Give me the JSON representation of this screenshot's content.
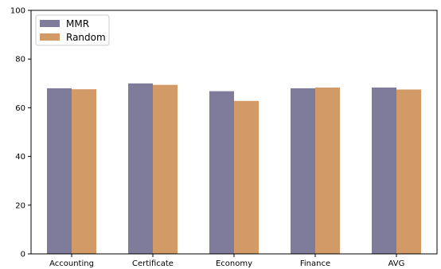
{
  "chart_data": {
    "type": "bar",
    "title": "",
    "xlabel": "",
    "ylabel": "",
    "categories": [
      "Accounting",
      "Certificate",
      "Economy",
      "Finance",
      "AVG"
    ],
    "series": [
      {
        "name": "MMR",
        "color": "#7f7c9b",
        "values": [
          68.0,
          70.0,
          66.8,
          68.0,
          68.3
        ]
      },
      {
        "name": "Random",
        "color": "#d19a66",
        "values": [
          67.6,
          69.4,
          62.8,
          68.3,
          67.5
        ]
      }
    ],
    "ylim": [
      0,
      100
    ],
    "yticks": [
      0,
      20,
      40,
      60,
      80,
      100
    ],
    "grid": false,
    "legend": "top-left"
  }
}
